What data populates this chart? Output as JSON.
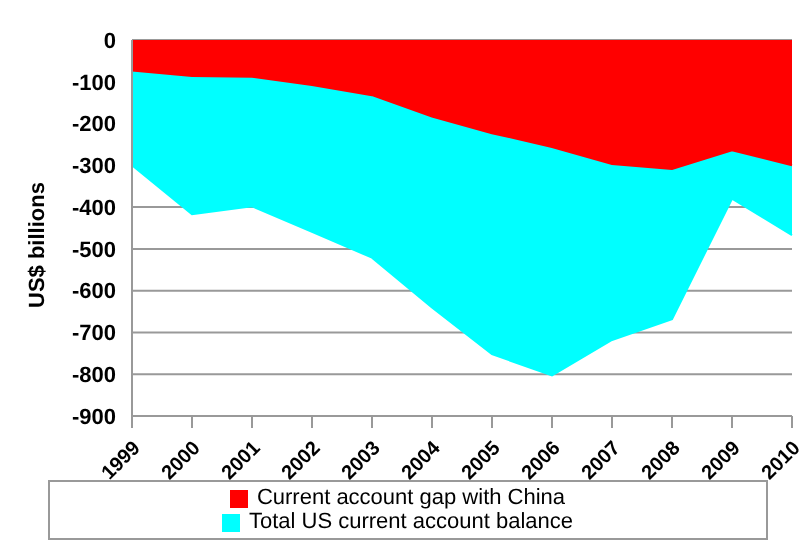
{
  "chart_data": {
    "type": "area",
    "ylabel": "US$ billions",
    "categories": [
      "1999",
      "2000",
      "2001",
      "2002",
      "2003",
      "2004",
      "2005",
      "2006",
      "2007",
      "2008",
      "2009",
      "2010"
    ],
    "series": [
      {
        "name": "Total US current account balance",
        "color": "#00ffff",
        "values": [
          -300,
          -417,
          -398,
          -459,
          -521,
          -640,
          -752,
          -803,
          -718,
          -668,
          -380,
          -467
        ]
      },
      {
        "name": "Current account gap with China",
        "color": "#ff0000",
        "values": [
          -73,
          -86,
          -88,
          -108,
          -132,
          -183,
          -223,
          -256,
          -297,
          -309,
          -264,
          -300
        ]
      }
    ],
    "ylim": [
      -900,
      0
    ],
    "yticks": [
      -900,
      -800,
      -700,
      -600,
      -500,
      -400,
      -300,
      -200,
      -100,
      0
    ],
    "grid": "y",
    "legend": "bottom"
  }
}
